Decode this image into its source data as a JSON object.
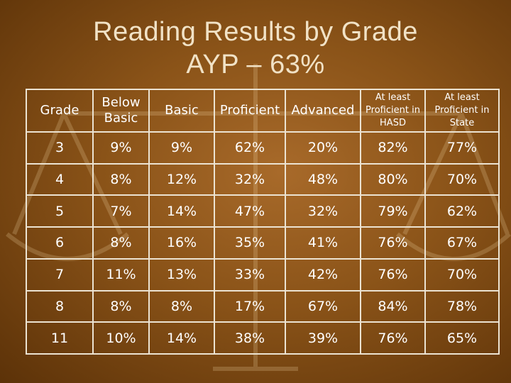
{
  "title": {
    "line1": "Reading Results by Grade",
    "line2": "AYP – 63%"
  },
  "table": {
    "headers": [
      "Grade",
      "Below Basic",
      "Basic",
      "Proficient",
      "Advanced",
      "At least Proficient in HASD",
      "At least Proficient in State"
    ],
    "rows": [
      [
        "3",
        "9%",
        "9%",
        "62%",
        "20%",
        "82%",
        "77%"
      ],
      [
        "4",
        "8%",
        "12%",
        "32%",
        "48%",
        "80%",
        "70%"
      ],
      [
        "5",
        "7%",
        "14%",
        "47%",
        "32%",
        "79%",
        "62%"
      ],
      [
        "6",
        "8%",
        "16%",
        "35%",
        "41%",
        "76%",
        "67%"
      ],
      [
        "7",
        "11%",
        "13%",
        "33%",
        "42%",
        "76%",
        "70%"
      ],
      [
        "8",
        "8%",
        "8%",
        "17%",
        "67%",
        "84%",
        "78%"
      ],
      [
        "11",
        "10%",
        "14%",
        "38%",
        "39%",
        "76%",
        "65%"
      ]
    ]
  },
  "colors": {
    "background": "#8a5318",
    "title_text": "#f1e2c6",
    "table_lines": "#ece3d2",
    "cell_text": "#ffffff"
  }
}
